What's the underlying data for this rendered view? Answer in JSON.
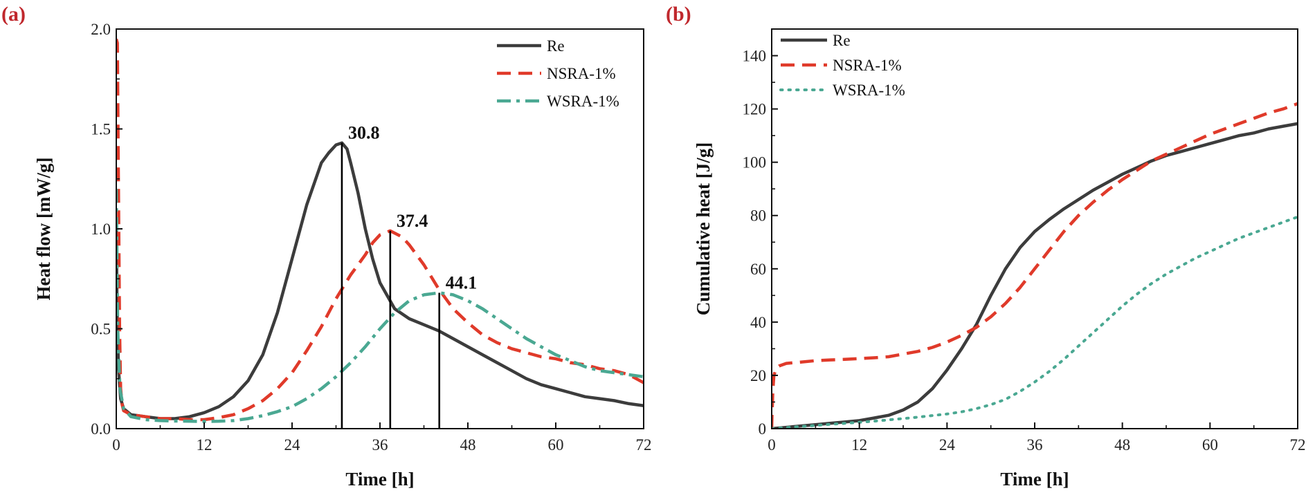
{
  "colors": {
    "re": "#3c3c3c",
    "nsra": "#e03a2a",
    "wsra": "#4aa892",
    "panel_label": "#c0282d",
    "axis": "#111111"
  },
  "chart_data": [
    {
      "panel_label": "(a)",
      "type": "line",
      "title": "",
      "xlabel": "Time [h]",
      "ylabel": "Heat flow [mW/g]",
      "xlim": [
        0,
        72
      ],
      "ylim": [
        0,
        2.0
      ],
      "xticks": [
        0,
        12,
        24,
        36,
        48,
        60,
        72
      ],
      "xtick_labels": [
        "0",
        "12",
        "24",
        "36",
        "48",
        "60",
        "72"
      ],
      "yticks": [
        0,
        0.5,
        1.0,
        1.5,
        2.0
      ],
      "ytick_labels": [
        "0.0",
        "0.5",
        "1.0",
        "1.5",
        "2.0"
      ],
      "legend_position": "top-right",
      "series": [
        {
          "name": "Re",
          "style": "solid",
          "x": [
            0,
            0.1,
            0.3,
            0.6,
            1,
            2,
            4,
            6,
            8,
            10,
            12,
            14,
            16,
            18,
            20,
            22,
            24,
            26,
            28,
            29,
            30,
            30.8,
            31.5,
            32,
            33,
            34,
            35,
            36,
            38,
            40,
            42,
            44,
            46,
            48,
            50,
            52,
            54,
            56,
            58,
            60,
            62,
            64,
            66,
            68,
            70,
            72
          ],
          "y": [
            1.05,
            0.6,
            0.3,
            0.15,
            0.1,
            0.07,
            0.06,
            0.05,
            0.05,
            0.06,
            0.08,
            0.11,
            0.16,
            0.24,
            0.37,
            0.58,
            0.85,
            1.12,
            1.33,
            1.38,
            1.42,
            1.43,
            1.4,
            1.33,
            1.18,
            1.0,
            0.85,
            0.73,
            0.6,
            0.55,
            0.52,
            0.49,
            0.45,
            0.41,
            0.37,
            0.33,
            0.29,
            0.25,
            0.22,
            0.2,
            0.18,
            0.16,
            0.15,
            0.14,
            0.125,
            0.115
          ]
        },
        {
          "name": "NSRA-1%",
          "style": "dashed",
          "x": [
            0,
            0.15,
            0.3,
            0.45,
            0.6,
            0.8,
            1,
            2,
            4,
            6,
            8,
            10,
            12,
            14,
            16,
            18,
            20,
            22,
            24,
            26,
            28,
            30,
            32,
            34,
            35,
            36,
            37.4,
            39,
            40,
            42,
            44,
            46,
            48,
            50,
            52,
            54,
            56,
            58,
            60,
            62,
            64,
            66,
            68,
            70,
            72
          ],
          "y": [
            1.95,
            1.93,
            1.2,
            0.5,
            0.2,
            0.12,
            0.09,
            0.07,
            0.06,
            0.05,
            0.05,
            0.045,
            0.045,
            0.055,
            0.07,
            0.1,
            0.14,
            0.2,
            0.28,
            0.39,
            0.51,
            0.65,
            0.77,
            0.87,
            0.93,
            0.97,
            0.99,
            0.96,
            0.92,
            0.82,
            0.7,
            0.6,
            0.53,
            0.47,
            0.43,
            0.4,
            0.38,
            0.36,
            0.35,
            0.33,
            0.32,
            0.3,
            0.29,
            0.27,
            0.23
          ]
        },
        {
          "name": "WSRA-1%",
          "style": "dashdot",
          "x": [
            0,
            0.2,
            0.5,
            1,
            2,
            4,
            6,
            8,
            10,
            12,
            14,
            16,
            18,
            20,
            22,
            24,
            26,
            28,
            30,
            32,
            34,
            36,
            38,
            40,
            42,
            44.1,
            46,
            48,
            50,
            52,
            54,
            56,
            58,
            60,
            62,
            64,
            66,
            68,
            70,
            72
          ],
          "y": [
            1.2,
            0.5,
            0.2,
            0.1,
            0.06,
            0.045,
            0.04,
            0.038,
            0.037,
            0.036,
            0.037,
            0.04,
            0.05,
            0.065,
            0.085,
            0.11,
            0.15,
            0.2,
            0.26,
            0.33,
            0.41,
            0.5,
            0.58,
            0.64,
            0.67,
            0.68,
            0.67,
            0.64,
            0.6,
            0.55,
            0.5,
            0.45,
            0.41,
            0.37,
            0.34,
            0.31,
            0.29,
            0.28,
            0.27,
            0.26
          ]
        }
      ],
      "annotations": [
        {
          "label": "30.8",
          "x": 30.8,
          "y": 1.43
        },
        {
          "label": "37.4",
          "x": 37.4,
          "y": 0.99
        },
        {
          "label": "44.1",
          "x": 44.1,
          "y": 0.68
        }
      ]
    },
    {
      "panel_label": "(b)",
      "type": "line",
      "title": "",
      "xlabel": "Time [h]",
      "ylabel": "Cumulative heat [J/g]",
      "xlim": [
        0,
        72
      ],
      "ylim": [
        0,
        150
      ],
      "xticks": [
        0,
        12,
        24,
        36,
        48,
        60,
        72
      ],
      "xtick_labels": [
        "0",
        "12",
        "24",
        "36",
        "48",
        "60",
        "72"
      ],
      "yticks": [
        0,
        20,
        40,
        60,
        80,
        100,
        120,
        140
      ],
      "ytick_labels": [
        "0",
        "20",
        "40",
        "60",
        "80",
        "100",
        "120",
        "140"
      ],
      "legend_position": "top-left",
      "series": [
        {
          "name": "Re",
          "style": "solid",
          "x": [
            0,
            2,
            4,
            6,
            8,
            10,
            12,
            14,
            16,
            18,
            20,
            22,
            24,
            26,
            28,
            30,
            32,
            34,
            36,
            38,
            40,
            42,
            44,
            46,
            48,
            50,
            52,
            54,
            56,
            58,
            60,
            62,
            64,
            66,
            68,
            70,
            72
          ],
          "y": [
            0,
            0.5,
            1,
            1.5,
            2,
            2.5,
            3,
            4,
            5,
            7,
            10,
            15,
            22,
            30,
            39,
            50,
            60,
            68,
            74,
            78.5,
            82.5,
            86,
            89.5,
            92.5,
            95.5,
            98,
            100.5,
            102.5,
            104,
            105.5,
            107,
            108.5,
            110,
            111,
            112.5,
            113.5,
            114.5
          ]
        },
        {
          "name": "NSRA-1%",
          "style": "dashed",
          "x": [
            0,
            0.05,
            0.15,
            0.3,
            0.6,
            1,
            2,
            4,
            6,
            8,
            10,
            12,
            14,
            16,
            18,
            20,
            22,
            24,
            26,
            28,
            30,
            32,
            34,
            36,
            38,
            40,
            42,
            44,
            46,
            48,
            50,
            52,
            54,
            56,
            58,
            60,
            62,
            64,
            66,
            68,
            70,
            72
          ],
          "y": [
            0,
            5,
            14,
            20,
            22.5,
            23.5,
            24.5,
            25,
            25.5,
            25.8,
            26,
            26.3,
            26.6,
            27,
            28,
            29,
            30.5,
            32.5,
            35,
            38,
            42,
            47,
            53,
            60,
            67,
            74,
            80,
            85,
            89.5,
            93.5,
            97,
            100.5,
            103,
            105.5,
            108,
            110.5,
            112.5,
            114.5,
            116.5,
            118.5,
            120,
            122
          ]
        },
        {
          "name": "WSRA-1%",
          "style": "dotted",
          "x": [
            0,
            2,
            4,
            6,
            8,
            10,
            12,
            14,
            16,
            18,
            20,
            22,
            24,
            26,
            28,
            30,
            32,
            34,
            36,
            38,
            40,
            42,
            44,
            46,
            48,
            50,
            52,
            54,
            56,
            58,
            60,
            62,
            64,
            66,
            68,
            70,
            72
          ],
          "y": [
            0,
            0.4,
            0.8,
            1.2,
            1.6,
            2,
            2.4,
            2.8,
            3.3,
            3.8,
            4.3,
            4.9,
            5.5,
            6.3,
            7.5,
            9,
            11,
            14,
            17.5,
            21.5,
            26,
            31,
            36,
            41,
            46,
            50.5,
            54.5,
            58,
            61,
            64,
            66.5,
            69,
            71.5,
            73.5,
            75.5,
            77.5,
            79.5
          ]
        }
      ]
    }
  ]
}
